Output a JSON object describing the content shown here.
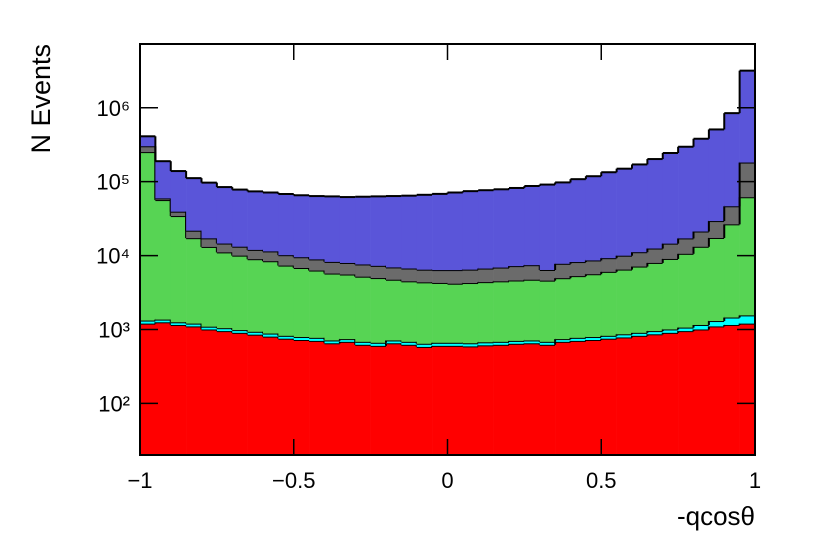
{
  "chart_data": {
    "type": "stacked_histogram",
    "log_y": true,
    "x_label": "-qcosθ",
    "y_label": "N Events",
    "bins": [
      -1,
      -0.95,
      -0.9,
      -0.85,
      -0.8,
      -0.75,
      -0.7,
      -0.65,
      -0.6,
      -0.55,
      -0.5,
      -0.45,
      -0.4,
      -0.35,
      -0.3,
      -0.25,
      -0.2,
      -0.15,
      -0.1,
      -0.05,
      0,
      0.05,
      0.1,
      0.15,
      0.2,
      0.25,
      0.3,
      0.35,
      0.4,
      0.45,
      0.5,
      0.55,
      0.6,
      0.65,
      0.7,
      0.75,
      0.8,
      0.85,
      0.9,
      0.95,
      1
    ],
    "series": [
      {
        "color": "#ff0000",
        "values": [
          1200,
          1250,
          1150,
          1100,
          1000,
          950,
          900,
          850,
          800,
          750,
          720,
          700,
          650,
          680,
          620,
          600,
          650,
          620,
          580,
          600,
          600,
          590,
          610,
          620,
          640,
          650,
          620,
          680,
          700,
          720,
          750,
          780,
          820,
          860,
          900,
          950,
          1000,
          1100,
          1150,
          1200
        ]
      },
      {
        "color": "#00ffff",
        "values": [
          120,
          110,
          100,
          100,
          90,
          90,
          80,
          80,
          80,
          70,
          70,
          70,
          60,
          60,
          60,
          60,
          60,
          60,
          60,
          60,
          60,
          60,
          60,
          60,
          60,
          60,
          60,
          60,
          70,
          70,
          70,
          80,
          80,
          90,
          100,
          110,
          150,
          200,
          300,
          350
        ]
      },
      {
        "color": "#57d454",
        "values": [
          250000,
          55000,
          33000,
          16000,
          12000,
          10000,
          9000,
          8000,
          7500,
          6500,
          6000,
          5500,
          5000,
          4800,
          4500,
          4300,
          4000,
          3800,
          3700,
          3600,
          3500,
          3600,
          3700,
          3800,
          3900,
          4000,
          3900,
          4200,
          4500,
          4800,
          5200,
          5600,
          6200,
          7000,
          8000,
          9500,
          12000,
          16000,
          25000,
          60000
        ]
      },
      {
        "color": "#6b6b6b",
        "values": [
          50000,
          3000,
          5000,
          4500,
          4000,
          3500,
          3200,
          3000,
          3000,
          2800,
          2700,
          2600,
          2500,
          2400,
          2400,
          2300,
          2200,
          2200,
          2100,
          2100,
          2200,
          2200,
          2300,
          2400,
          2600,
          2700,
          1800,
          2800,
          2900,
          3000,
          3200,
          3500,
          4000,
          4500,
          5500,
          6500,
          8000,
          12000,
          20000,
          120000
        ]
      },
      {
        "color": "#5a55d9",
        "values": [
          110000,
          130000,
          100000,
          90000,
          80000,
          70000,
          65000,
          62000,
          60000,
          58000,
          56000,
          55000,
          55000,
          54000,
          55000,
          56000,
          57000,
          58000,
          60000,
          62000,
          65000,
          68000,
          70000,
          72000,
          75000,
          80000,
          85000,
          90000,
          100000,
          110000,
          125000,
          140000,
          160000,
          190000,
          230000,
          280000,
          360000,
          480000,
          800000,
          3000000
        ]
      }
    ],
    "xlim": [
      -1,
      1
    ],
    "xticks": [
      {
        "value": -1,
        "label": "−1"
      },
      {
        "value": -0.5,
        "label": "−0.5"
      },
      0,
      0.5,
      1
    ],
    "ylim": [
      20,
      7300000
    ],
    "yticks": [
      {
        "value": 100,
        "label": "10²"
      },
      {
        "value": 1000,
        "label": "10³"
      },
      {
        "value": 10000,
        "label": "10⁴"
      },
      {
        "value": 100000,
        "label": "10⁵"
      },
      {
        "value": 1000000,
        "label": "10⁶"
      }
    ]
  }
}
